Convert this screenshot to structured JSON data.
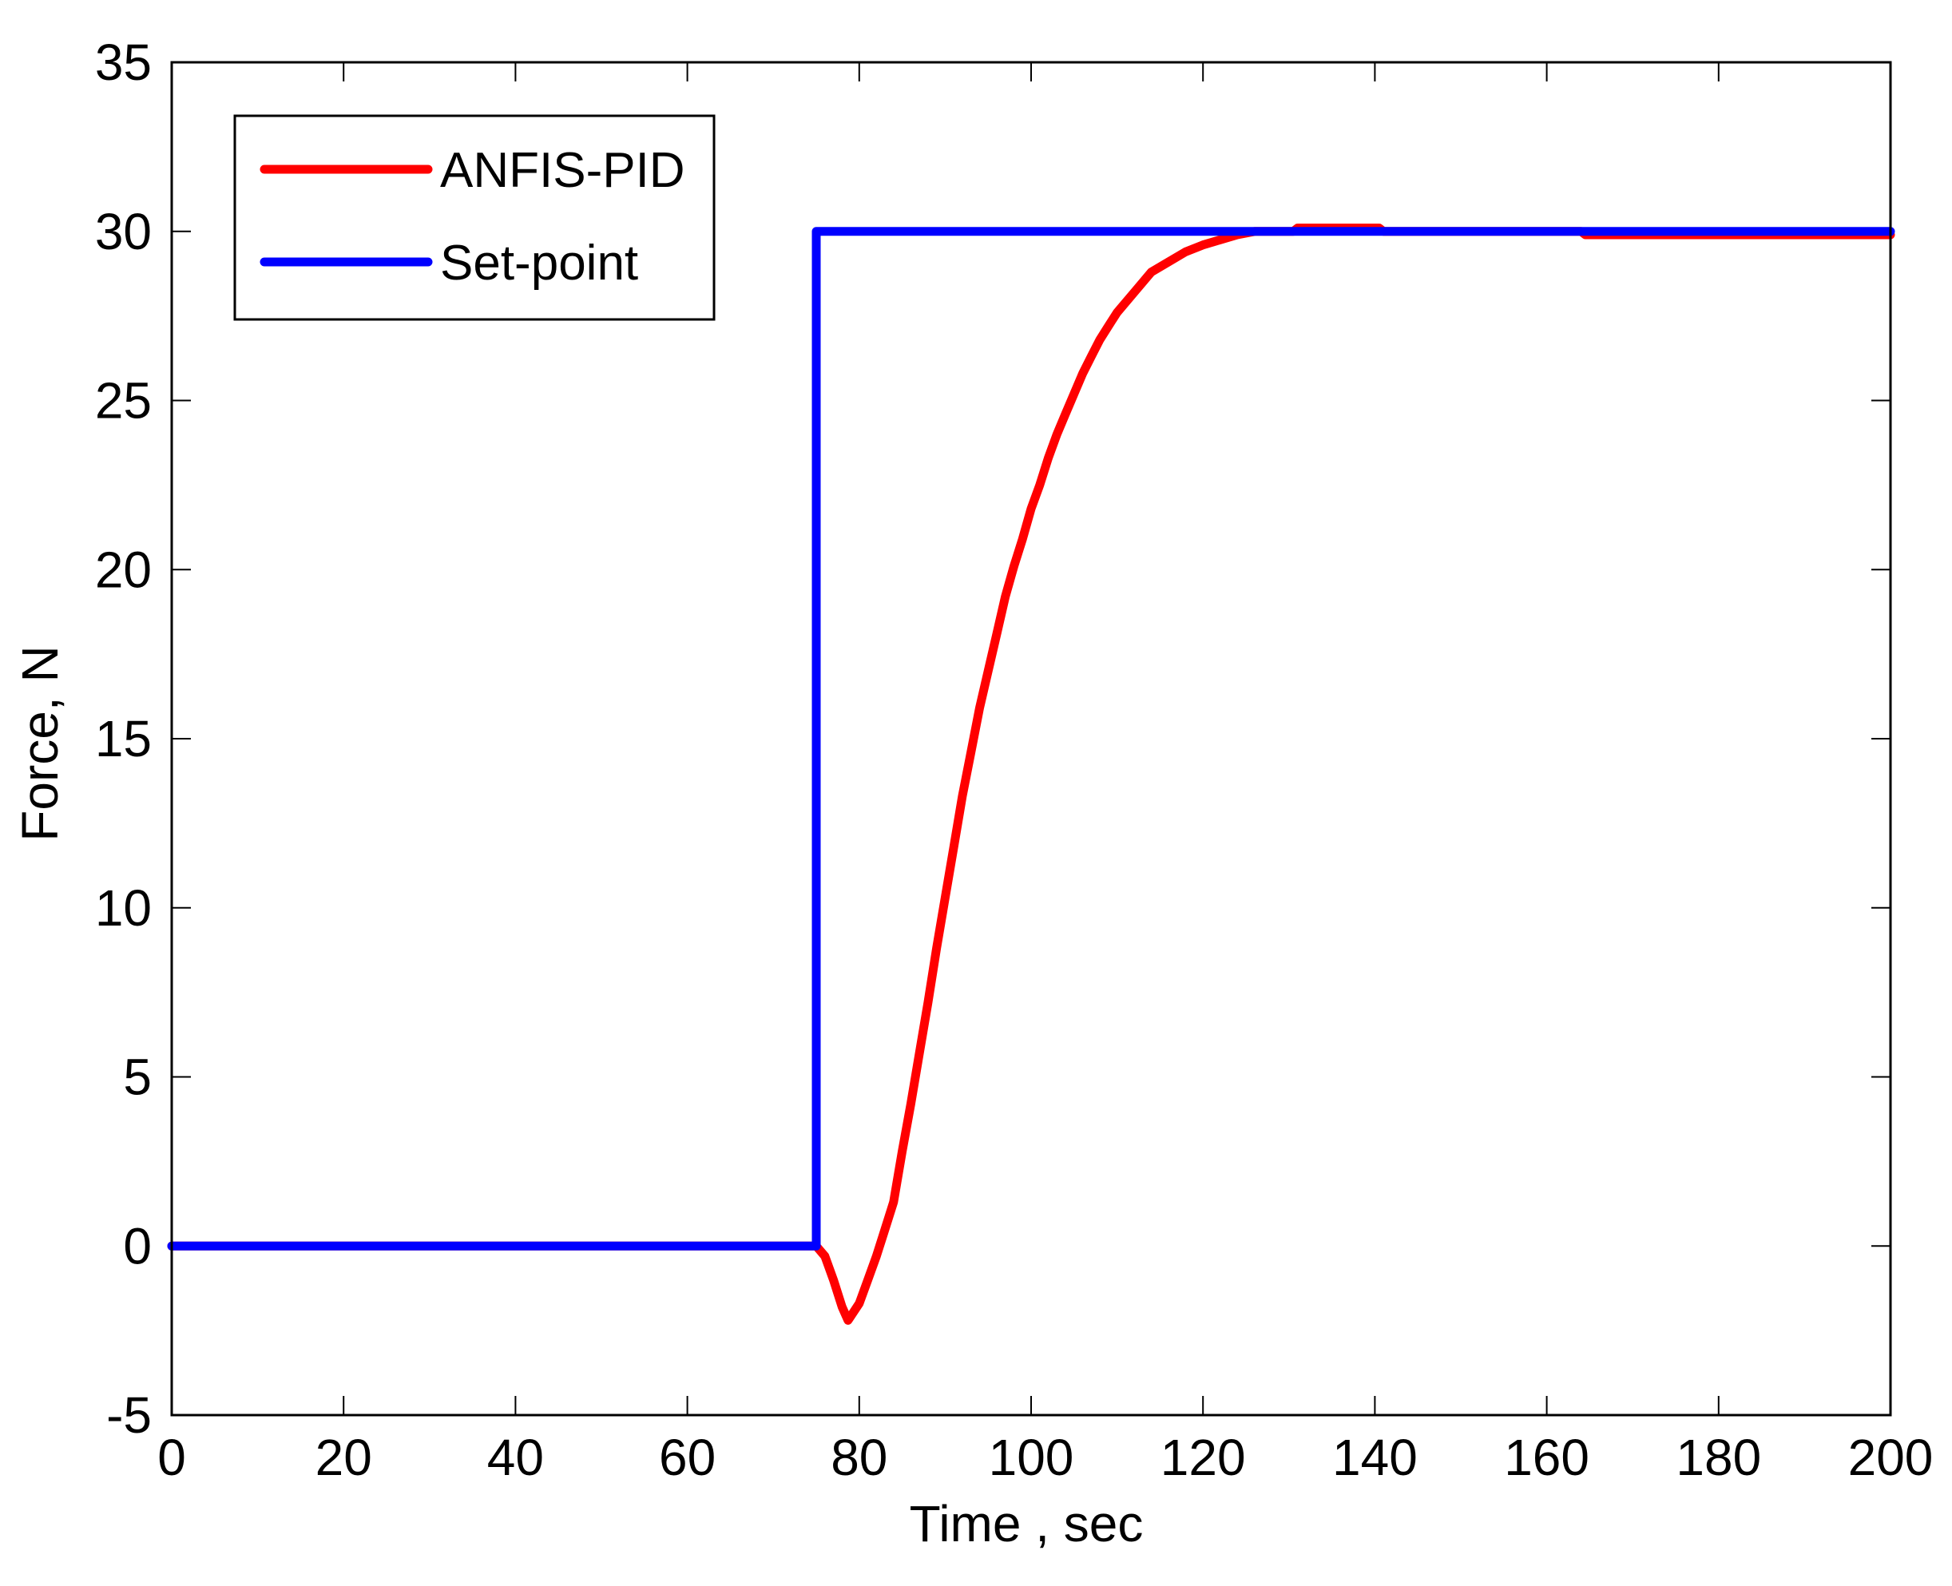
{
  "chart_data": {
    "type": "line",
    "title": "",
    "xlabel": "Time , sec",
    "ylabel": "Force,  N",
    "xlim": [
      0,
      200
    ],
    "ylim": [
      -5,
      35
    ],
    "xticks": [
      0,
      20,
      40,
      60,
      80,
      100,
      120,
      140,
      160,
      180,
      200
    ],
    "yticks": [
      -5,
      0,
      5,
      10,
      15,
      20,
      25,
      30,
      35
    ],
    "xtick_labels": [
      "0",
      "20",
      "40",
      "60",
      "80",
      "100",
      "120",
      "140",
      "160",
      "180",
      "200"
    ],
    "ytick_labels": [
      "-5",
      "0",
      "5",
      "10",
      "15",
      "20",
      "25",
      "30",
      "35"
    ],
    "grid": false,
    "legend_position": "upper left",
    "series": [
      {
        "name": "ANFIS-PID",
        "color": "#ff0000",
        "x": [
          0,
          75,
          76,
          77,
          78,
          78.7,
          80,
          81,
          82,
          83,
          84,
          85,
          86,
          87,
          88,
          89,
          90,
          91,
          92,
          93,
          94,
          95,
          96,
          97,
          98,
          99,
          100,
          101,
          102,
          103,
          104,
          105,
          106,
          107,
          108,
          109,
          110,
          112,
          114,
          116,
          118,
          120,
          122,
          124,
          126,
          130.5,
          131,
          140.5,
          141,
          164,
          164.5,
          200
        ],
        "y": [
          0,
          0,
          -0.3,
          -1.0,
          -1.8,
          -2.2,
          -1.7,
          -1.0,
          -0.3,
          0.5,
          1.3,
          2.8,
          4.2,
          5.7,
          7.2,
          8.8,
          10.3,
          11.8,
          13.3,
          14.6,
          15.9,
          17.0,
          18.1,
          19.2,
          20.1,
          20.9,
          21.8,
          22.5,
          23.3,
          24.0,
          24.6,
          25.2,
          25.8,
          26.3,
          26.8,
          27.2,
          27.6,
          28.2,
          28.8,
          29.1,
          29.4,
          29.6,
          29.75,
          29.9,
          30.0,
          30.0,
          30.1,
          30.1,
          30.0,
          30.0,
          29.9,
          29.9
        ]
      },
      {
        "name": "Set-point",
        "color": "#0000ff",
        "x": [
          0,
          75,
          75,
          200
        ],
        "y": [
          0,
          0,
          30,
          30
        ]
      }
    ]
  },
  "legend": {
    "items": [
      {
        "label": "ANFIS-PID",
        "color": "#ff0000"
      },
      {
        "label": "Set-point",
        "color": "#0000ff"
      }
    ]
  },
  "axes": {
    "xlabel": "Time , sec",
    "ylabel": "Force,  N"
  }
}
